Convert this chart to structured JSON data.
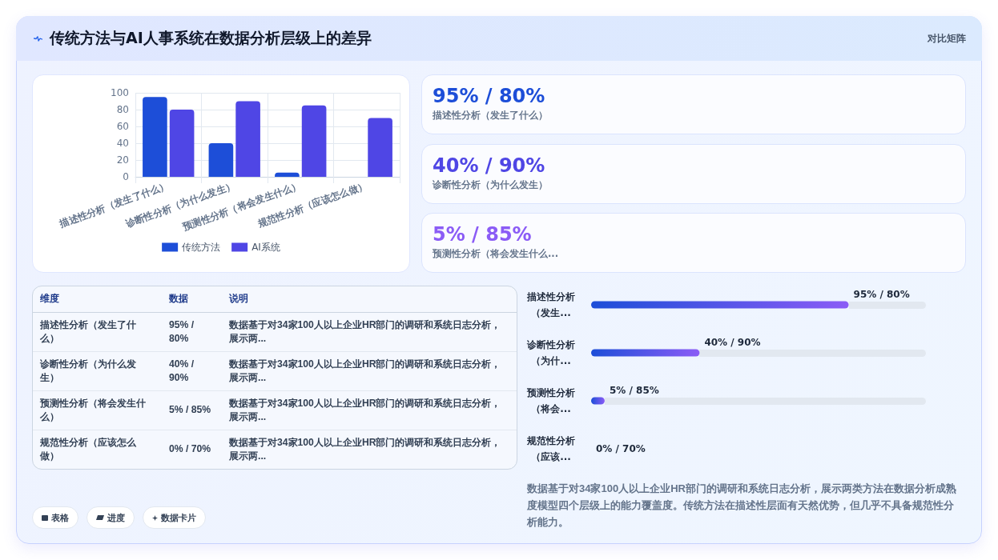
{
  "chart_data": [
    {
      "type": "other",
      "title": "传统方法与AI人事系统在数据分析层级上的差异",
      "subtitle": "对比矩阵"
    },
    {
      "type": "bar",
      "categories": [
        "描述性分析（发生了什么）",
        "诊断性分析（为什么发生）",
        "预测性分析（将会发生什么）",
        "规范性分析（应该怎么做）"
      ],
      "series": [
        {
          "name": "传统方法",
          "color": "#1d4ed8",
          "values": [
            95,
            40,
            5,
            0
          ]
        },
        {
          "name": "AI系统",
          "color": "#4f46e5",
          "values": [
            80,
            90,
            85,
            70
          ]
        }
      ],
      "ylim": [
        0,
        100
      ],
      "yticks": [
        0,
        20,
        40,
        60,
        80,
        100
      ],
      "grid": true,
      "legend": "bottom"
    },
    {
      "type": "other",
      "annotations": [
        "95% / 80%",
        "40% / 90%",
        "5% / 85%"
      ],
      "categories": [
        "描述性分析（发生了什么）",
        "诊断性分析（为什么发生）",
        "预测性分析（将会发生什么..."
      ]
    },
    {
      "type": "other",
      "categories": [
        "维度",
        "数据",
        "说明"
      ],
      "annotations": [
        "描述性分析（发生了什么）",
        "95% / 80%",
        "数据基于对34家100人以上企业HR部门的调研和系统日志分析，展示两...",
        "诊断性分析（为什么发生）",
        "40% / 90%",
        "数据基于对34家100人以上企业HR部门的调研和系统日志分析，展示两...",
        "预测性分析（将会发生什么）",
        "5% / 85%",
        "数据基于对34家100人以上企业HR部门的调研和系统日志分析，展示两...",
        "规范性分析（应该怎么做）",
        "0% / 70%",
        "数据基于对34家100人以上企业HR部门的调研和系统日志分析，展示两..."
      ]
    },
    {
      "type": "bar",
      "orientation": "horizontal",
      "categories": [
        "描述性分析（发生...",
        "诊断性分析（为什...",
        "预测性分析（将会...",
        "规范性分析（应该..."
      ],
      "values": [
        95,
        40,
        5,
        0
      ],
      "color": "#1d4ed8",
      "value_labels": [
        "95% / 80%",
        "40% / 90%",
        "5% / 85%",
        "0% / 70%"
      ],
      "tick_labels": "y",
      "annotations": [
        "数据基于对34家100人以上企业HR部门的调研和系统日志分析，展示两类方法在数据分析成熟度模型四个层级上的能力覆盖度。传统方法在描述性层面有天然优势，但几乎不具备规范性分析能力。"
      ]
    },
    {
      "type": "other",
      "annotations": [
        "表格",
        "进度",
        "数据卡片"
      ]
    }
  ]
}
